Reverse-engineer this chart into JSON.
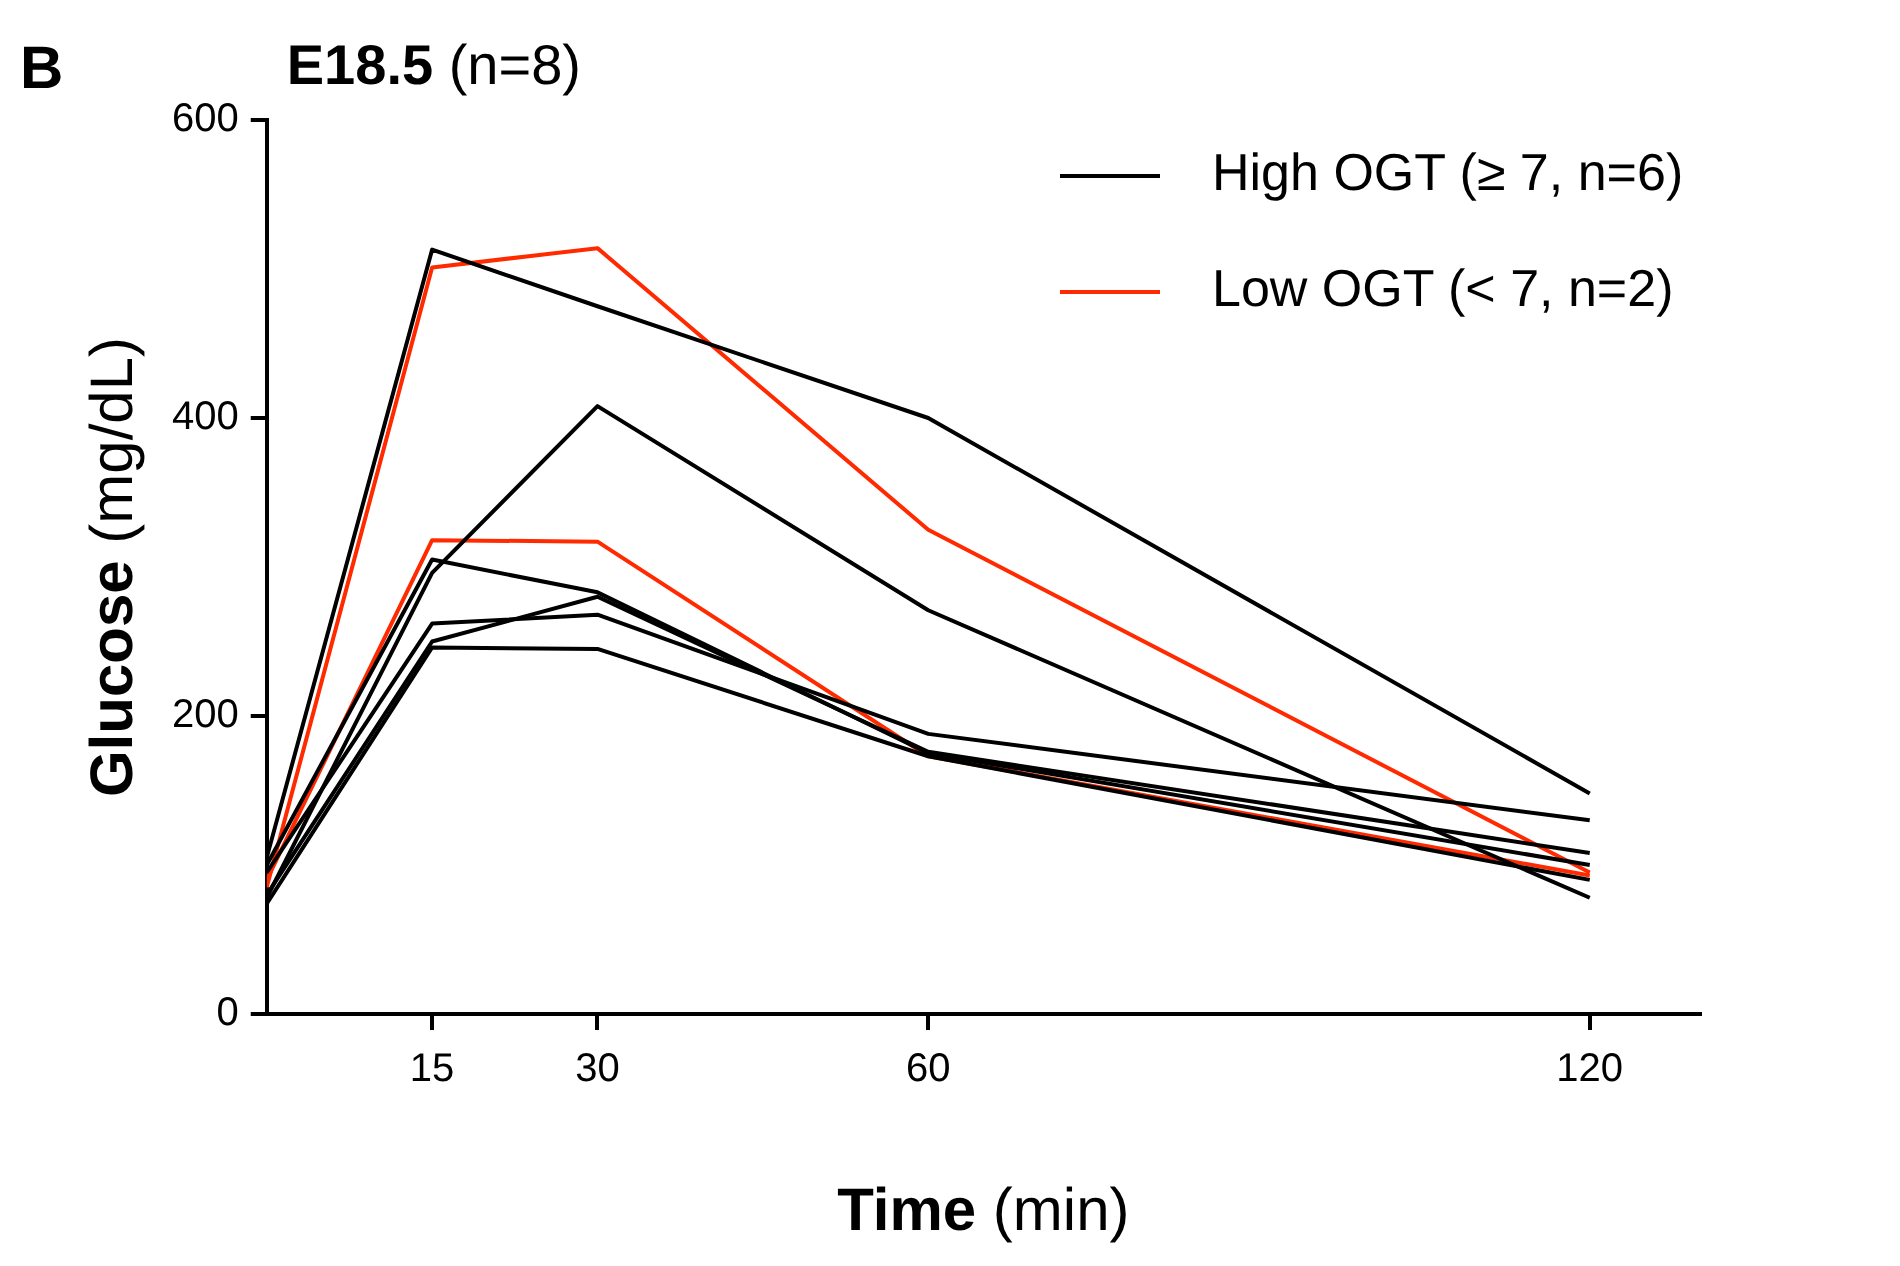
{
  "chart_data": {
    "type": "line",
    "title": "E18.5 (n=8)",
    "xlabel": "Time (min)",
    "ylabel": "Glucose (mg/dL)",
    "annotations": [
      "B"
    ],
    "x": [
      0,
      15,
      30,
      60,
      120
    ],
    "xlim": [
      0,
      130
    ],
    "xticks": [
      15,
      30,
      60,
      120
    ],
    "ylim": [
      0,
      600
    ],
    "yticks": [
      0,
      200,
      400,
      600
    ],
    "grid": false,
    "legend": "top right",
    "marker": "none",
    "line_style": "solid",
    "series": [
      {
        "name": "High OGT (≥ 7, n=6)",
        "color": "#000000",
        "values": [
          105,
          513,
          475,
          400,
          148
        ]
      },
      {
        "color": "#000000",
        "values": [
          78,
          296,
          408,
          271,
          78
        ]
      },
      {
        "color": "#000000",
        "values": [
          100,
          305,
          283,
          175,
          100
        ]
      },
      {
        "color": "#000000",
        "values": [
          95,
          262,
          268,
          188,
          130
        ]
      },
      {
        "color": "#000000",
        "values": [
          80,
          250,
          280,
          176,
          108
        ]
      },
      {
        "color": "#000000",
        "values": [
          74,
          246,
          245,
          173,
          90
        ]
      },
      {
        "name": "Low OGT (< 7, n=2)",
        "color": "#ff2a00",
        "values": [
          85,
          501,
          514,
          325,
          95
        ]
      },
      {
        "color": "#ff2a00",
        "values": [
          90,
          318,
          317,
          173,
          93
        ]
      }
    ]
  }
}
